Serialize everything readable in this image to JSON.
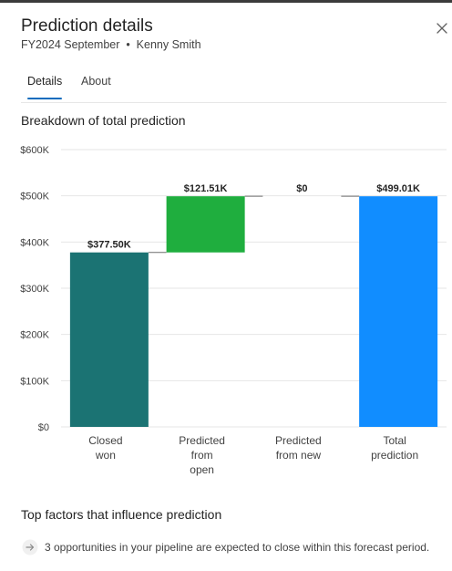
{
  "header": {
    "title": "Prediction details",
    "subtitle": "FY2024 September  •  Kenny Smith"
  },
  "tabs": [
    {
      "label": "Details",
      "active": true
    },
    {
      "label": "About",
      "active": false
    }
  ],
  "breakdown": {
    "title": "Breakdown of total prediction"
  },
  "chart_data": {
    "type": "bar",
    "subtype": "waterfall",
    "title": "Breakdown of total prediction",
    "categories": [
      "Closed won",
      "Predicted from open",
      "Predicted from new",
      "Total prediction"
    ],
    "category_lines": [
      [
        "Closed",
        "won"
      ],
      [
        "Predicted",
        "from",
        "open"
      ],
      [
        "Predicted",
        "from new"
      ],
      [
        "Total",
        "prediction"
      ]
    ],
    "values": [
      377.5,
      121.51,
      0,
      499.01
    ],
    "bases": [
      0,
      377.5,
      499.01,
      0
    ],
    "value_labels": [
      "$377.50K",
      "$121.51K",
      "$0",
      "$499.01K"
    ],
    "colors": [
      "#1b7373",
      "#1fae3e",
      "#1fae3e",
      "#118dff"
    ],
    "y_ticks": [
      0,
      100,
      200,
      300,
      400,
      500,
      600
    ],
    "y_tick_labels": [
      "$0",
      "$100K",
      "$200K",
      "$300K",
      "$400K",
      "$500K",
      "$600K"
    ],
    "ylim": [
      0,
      600
    ],
    "grid": true,
    "xlabel": "",
    "ylabel": ""
  },
  "factors": {
    "title": "Top factors that influence prediction",
    "items": [
      {
        "icon": "arrow-right-icon",
        "text": "3 opportunities in your pipeline are expected to close within this forecast period."
      }
    ]
  },
  "colors": {
    "accent": "#0f6cbd",
    "grid": "#e6e6e6",
    "closed_won": "#1b7373",
    "increase": "#1fae3e",
    "total": "#118dff"
  }
}
